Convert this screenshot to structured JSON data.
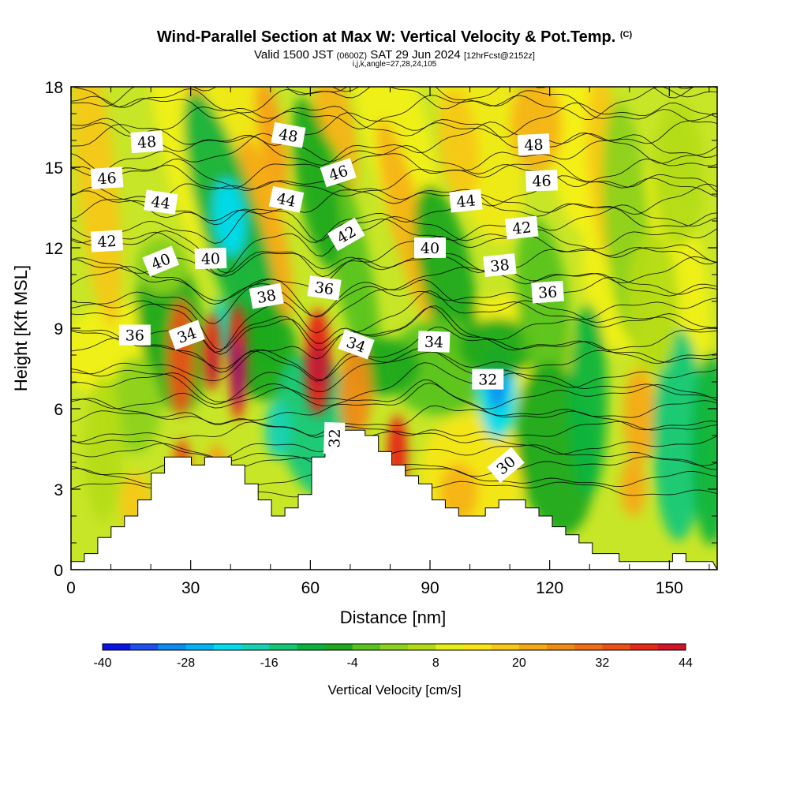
{
  "header": {
    "title": "Wind-Parallel Section at Max W: Vertical Velocity & Pot.Temp.",
    "title_units": "(C)",
    "valid_prefix": "Valid 1500 JST",
    "valid_z": "(0600Z)",
    "valid_date": "SAT 29 Jun 2024",
    "forecast": "[12hrFcst@2152z]",
    "indices": "i,j,k,angle=27,28,24,105"
  },
  "chart_data": {
    "type": "heatmap",
    "xlabel": "Distance [nm]",
    "ylabel": "Height [Kft MSL]",
    "xlim": [
      0,
      162
    ],
    "ylim": [
      0,
      18
    ],
    "x_ticks": [
      "0",
      "30",
      "60",
      "90",
      "120",
      "150"
    ],
    "y_ticks": [
      "0",
      "3",
      "6",
      "9",
      "12",
      "15",
      "18"
    ],
    "colorbar": {
      "title": "Vertical Velocity [cm/s]",
      "range": [
        -40,
        44
      ],
      "step": 4,
      "tick_labels": [
        "-40",
        "-28",
        "-16",
        "-4",
        "8",
        "20",
        "32",
        "44"
      ],
      "colors": [
        "#0a14e6",
        "#1e50f0",
        "#0a8cf0",
        "#00b4f5",
        "#00dcf0",
        "#14d2b4",
        "#14c878",
        "#0ab43c",
        "#1ea91e",
        "#5ac31e",
        "#8cd21e",
        "#b4dc14",
        "#e6f014",
        "#fae614",
        "#fac814",
        "#f5aa14",
        "#f08c14",
        "#f06e14",
        "#eb5014",
        "#e62814",
        "#d21428",
        "#b4143c",
        "#960a5a",
        "#780a78",
        "#5a0a8c"
      ]
    },
    "terrain_kft": [
      [
        0,
        0.3
      ],
      [
        1,
        0.3
      ],
      [
        1,
        0.6
      ],
      [
        2,
        0.6
      ],
      [
        2,
        1.2
      ],
      [
        3,
        1.2
      ],
      [
        3,
        1.6
      ],
      [
        4,
        1.6
      ],
      [
        4,
        2.0
      ],
      [
        5,
        2.0
      ],
      [
        5,
        2.6
      ],
      [
        6,
        2.6
      ],
      [
        6,
        3.6
      ],
      [
        7,
        3.6
      ],
      [
        7,
        4.2
      ],
      [
        8,
        4.2
      ],
      [
        8,
        4.2
      ],
      [
        9,
        4.2
      ],
      [
        9,
        3.9
      ],
      [
        10,
        3.9
      ],
      [
        10,
        4.2
      ],
      [
        11,
        4.2
      ],
      [
        11,
        4.2
      ],
      [
        12,
        4.2
      ],
      [
        12,
        3.9
      ],
      [
        13,
        3.9
      ],
      [
        13,
        3.2
      ],
      [
        14,
        3.2
      ],
      [
        14,
        2.6
      ],
      [
        15,
        2.6
      ],
      [
        15,
        2.0
      ],
      [
        16,
        2.0
      ],
      [
        16,
        2.3
      ],
      [
        17,
        2.3
      ],
      [
        17,
        2.8
      ],
      [
        18,
        2.8
      ],
      [
        18,
        4.2
      ],
      [
        19,
        4.2
      ],
      [
        19,
        4.9
      ],
      [
        20,
        4.9
      ],
      [
        20,
        5.2
      ],
      [
        21,
        5.2
      ],
      [
        21,
        5.2
      ],
      [
        22,
        5.2
      ],
      [
        22,
        5.0
      ],
      [
        23,
        5.0
      ],
      [
        23,
        4.4
      ],
      [
        24,
        4.4
      ],
      [
        24,
        3.9
      ],
      [
        25,
        3.9
      ],
      [
        25,
        3.5
      ],
      [
        26,
        3.5
      ],
      [
        26,
        3.2
      ],
      [
        27,
        3.2
      ],
      [
        27,
        2.6
      ],
      [
        28,
        2.6
      ],
      [
        28,
        2.3
      ],
      [
        29,
        2.3
      ],
      [
        29,
        2.0
      ],
      [
        30,
        2.0
      ],
      [
        30,
        2.0
      ],
      [
        31,
        2.0
      ],
      [
        31,
        2.3
      ],
      [
        32,
        2.3
      ],
      [
        32,
        2.6
      ],
      [
        33,
        2.6
      ],
      [
        33,
        2.6
      ],
      [
        34,
        2.6
      ],
      [
        34,
        2.3
      ],
      [
        35,
        2.3
      ],
      [
        35,
        2.0
      ],
      [
        36,
        2.0
      ],
      [
        36,
        1.6
      ],
      [
        37,
        1.6
      ],
      [
        37,
        1.3
      ],
      [
        38,
        1.3
      ],
      [
        38,
        1.0
      ],
      [
        39,
        1.0
      ],
      [
        39,
        0.6
      ],
      [
        40,
        0.6
      ],
      [
        40,
        0.6
      ],
      [
        41,
        0.6
      ],
      [
        41,
        0.3
      ],
      [
        42,
        0.3
      ],
      [
        42,
        0.3
      ],
      [
        43,
        0.3
      ],
      [
        43,
        0.3
      ],
      [
        44,
        0.3
      ],
      [
        44,
        0.3
      ],
      [
        45,
        0.3
      ],
      [
        45,
        0.6
      ],
      [
        46,
        0.6
      ],
      [
        46,
        0.3
      ],
      [
        47,
        0.3
      ],
      [
        47,
        0.3
      ],
      [
        48,
        0.3
      ],
      [
        48,
        0.3
      ]
    ],
    "theta_contour_labels": [
      {
        "value": "48",
        "x": 19.0,
        "y": 15.95,
        "angle": -4
      },
      {
        "value": "48",
        "x": 54.5,
        "y": 16.2,
        "angle": 10
      },
      {
        "value": "48",
        "x": 116.0,
        "y": 15.85,
        "angle": -3
      },
      {
        "value": "46",
        "x": 9.0,
        "y": 14.6,
        "angle": -4
      },
      {
        "value": "46",
        "x": 67.0,
        "y": 14.8,
        "angle": -18
      },
      {
        "value": "46",
        "x": 118.0,
        "y": 14.5,
        "angle": -2
      },
      {
        "value": "44",
        "x": 22.5,
        "y": 13.7,
        "angle": 8
      },
      {
        "value": "44",
        "x": 54.0,
        "y": 13.8,
        "angle": 12
      },
      {
        "value": "44",
        "x": 99.0,
        "y": 13.75,
        "angle": -6
      },
      {
        "value": "42",
        "x": 9.0,
        "y": 12.25,
        "angle": -3
      },
      {
        "value": "42",
        "x": 69.0,
        "y": 12.5,
        "angle": -30
      },
      {
        "value": "42",
        "x": 113.0,
        "y": 12.75,
        "angle": -6
      },
      {
        "value": "40",
        "x": 22.5,
        "y": 11.5,
        "angle": -22
      },
      {
        "value": "40",
        "x": 35.0,
        "y": 11.6,
        "angle": -2
      },
      {
        "value": "40",
        "x": 90.0,
        "y": 12.0,
        "angle": 0
      },
      {
        "value": "38",
        "x": 49.0,
        "y": 10.2,
        "angle": -10
      },
      {
        "value": "38",
        "x": 107.5,
        "y": 11.35,
        "angle": -6
      },
      {
        "value": "36",
        "x": 16.0,
        "y": 8.75,
        "angle": 0
      },
      {
        "value": "36",
        "x": 63.5,
        "y": 10.5,
        "angle": 8
      },
      {
        "value": "36",
        "x": 119.5,
        "y": 10.35,
        "angle": -4
      },
      {
        "value": "34",
        "x": 29.0,
        "y": 8.75,
        "angle": -20
      },
      {
        "value": "34",
        "x": 71.5,
        "y": 8.4,
        "angle": 20
      },
      {
        "value": "34",
        "x": 91.0,
        "y": 8.5,
        "angle": 2
      },
      {
        "value": "32",
        "x": 104.5,
        "y": 7.1,
        "angle": 0
      },
      {
        "value": "32",
        "x": 66.0,
        "y": 4.9,
        "angle": -88
      },
      {
        "value": "30",
        "x": 109.0,
        "y": 3.9,
        "angle": -40
      }
    ],
    "grid": false
  }
}
